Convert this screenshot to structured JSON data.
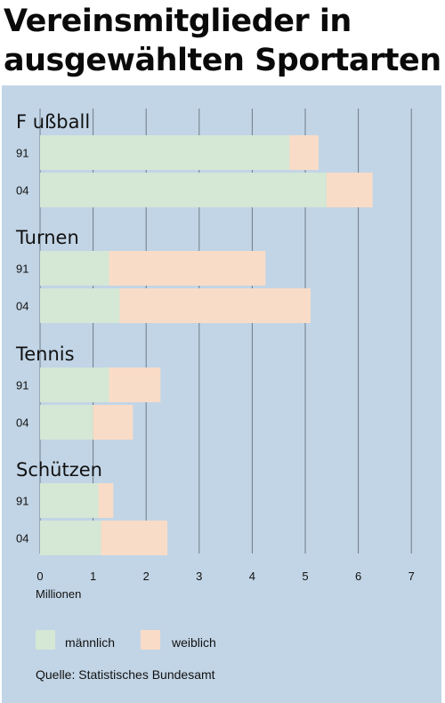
{
  "title": "Vereinsmitglieder in\nausgewählten Sportarten",
  "colors": {
    "background": "#c2d5e6",
    "maennlich": "#d5e7d5",
    "weiblich": "#f9dcc7",
    "grid": "#6d7b88"
  },
  "chart_data": {
    "type": "bar",
    "orientation": "horizontal",
    "stacked": true,
    "title": "Vereinsmitglieder in ausgewählten Sportarten",
    "xlabel": "Millionen",
    "xlim": [
      0,
      7
    ],
    "xticks": [
      0,
      1,
      2,
      3,
      4,
      5,
      6,
      7
    ],
    "grid": true,
    "legend_position": "bottom-left",
    "groups": [
      {
        "name": "F ußball",
        "bars": [
          {
            "year": "91",
            "maennlich": 4.7,
            "weiblich": 0.55
          },
          {
            "year": "04",
            "maennlich": 5.4,
            "weiblich": 0.87
          }
        ]
      },
      {
        "name": "Turnen",
        "bars": [
          {
            "year": "91",
            "maennlich": 1.3,
            "weiblich": 2.95
          },
          {
            "year": "04",
            "maennlich": 1.5,
            "weiblich": 3.6
          }
        ]
      },
      {
        "name": "Tennis",
        "bars": [
          {
            "year": "91",
            "maennlich": 1.3,
            "weiblich": 0.97
          },
          {
            "year": "04",
            "maennlich": 1.0,
            "weiblich": 0.75
          }
        ]
      },
      {
        "name": "Schützen",
        "bars": [
          {
            "year": "91",
            "maennlich": 1.1,
            "weiblich": 0.28
          },
          {
            "year": "04",
            "maennlich": 1.15,
            "weiblich": 1.25
          }
        ]
      }
    ],
    "series": [
      {
        "key": "maennlich",
        "name": "männlich"
      },
      {
        "key": "weiblich",
        "name": "weiblich"
      }
    ]
  },
  "legend": {
    "maennlich_label": "männlich",
    "weiblich_label": "weiblich"
  },
  "source": "Quelle: Statistisches Bundesamt"
}
